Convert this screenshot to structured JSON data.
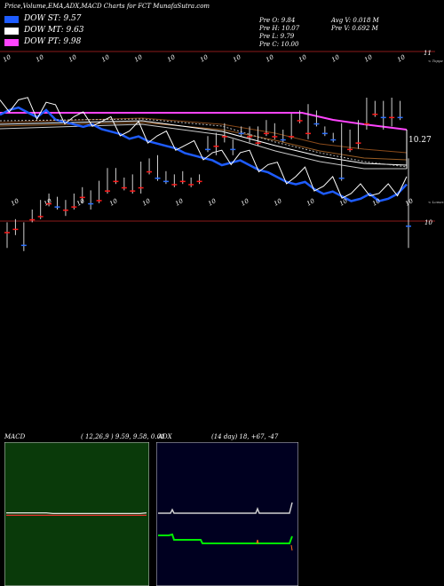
{
  "header": {
    "title": "Price,Volume,EMA,ADX,MACD Charts for FCT MunafaSutra.com",
    "dow": [
      {
        "label": "DOW ST: 9.57",
        "color": "#1e5cff"
      },
      {
        "label": "DOW MT: 9.63",
        "color": "#ffffff"
      },
      {
        "label": "DOW PT: 9.98",
        "color": "#ff44ff"
      }
    ],
    "stats_left": [
      "Pre  O: 9.84",
      "Pre  H: 10.07",
      "Pre  L: 9.79",
      "Pre  C: 10.00"
    ],
    "stats_right": [
      "Avg V: 0.018  M",
      "Pre  V: 0.692  M"
    ]
  },
  "price_panel": {
    "top_labels": [
      "10",
      "10",
      "10",
      "10",
      "10",
      "10",
      "10",
      "10",
      "10",
      "10",
      "10",
      "10",
      "10"
    ],
    "right_label": "11",
    "tiny_right": "< Toppe",
    "value_label": "10.27",
    "bottom_labels": [
      "10",
      "10",
      "10",
      "10",
      "10",
      "10",
      "10",
      "10",
      "10",
      "10",
      "10",
      "10",
      "10"
    ]
  },
  "candle_panel": {
    "tiny_right": "< Lowes",
    "right_label": "10"
  },
  "macd": {
    "label": "MACD",
    "params": "( 12,26,9 ) 9.59,  9.58,  0.01"
  },
  "adx": {
    "label": "ADX",
    "params": "(14  day) 18,  +67,  -47"
  },
  "chart_data": [
    {
      "type": "line",
      "title": "",
      "series": [
        {
          "name": "",
          "values": [
            9.86,
            9.88,
            9.89,
            9.87,
            9.85,
            9.88,
            9.84,
            9.83,
            9.82,
            9.81,
            9.82,
            9.8,
            9.79,
            9.78,
            9.76,
            9.77,
            9.75,
            9.74,
            9.73,
            9.72,
            9.7,
            9.69,
            9.68,
            9.67,
            9.65,
            9.66,
            9.67,
            9.65,
            9.63,
            9.62,
            9.6,
            9.58,
            9.57,
            9.58,
            9.55,
            9.53,
            9.54,
            9.52,
            9.5,
            9.51,
            9.53,
            9.5,
            9.51,
            9.53,
            9.57
          ]
        }
      ],
      "line_colors": [
        "#1e5cff",
        "#ff44ff",
        "#ffffff",
        "#c8c8c8",
        "#ff9a3c",
        "#b0b0b0"
      ]
    },
    {
      "type": "bar",
      "title": "",
      "candles": [
        {
          "o": 10.02,
          "c": 10.01,
          "h": 10.07,
          "l": 9.99
        },
        {
          "o": 10.01,
          "c": 10.0,
          "h": 10.03,
          "l": 9.98
        },
        {
          "o": 10.0,
          "c": 10.06,
          "h": 10.08,
          "l": 9.99
        },
        {
          "o": 9.98,
          "c": 9.96,
          "h": 9.99,
          "l": 9.95
        },
        {
          "o": 9.97,
          "c": 9.94,
          "h": 9.98,
          "l": 9.92
        },
        {
          "o": 9.93,
          "c": 9.91,
          "h": 9.94,
          "l": 9.9
        },
        {
          "o": 9.92,
          "c": 9.94,
          "h": 9.95,
          "l": 9.91
        },
        {
          "o": 9.95,
          "c": 9.93,
          "h": 9.97,
          "l": 9.92
        },
        {
          "o": 9.94,
          "c": 9.92,
          "h": 9.95,
          "l": 9.9
        },
        {
          "o": 9.91,
          "c": 9.89,
          "h": 9.93,
          "l": 9.88
        },
        {
          "o": 9.9,
          "c": 9.93,
          "h": 9.95,
          "l": 9.89
        },
        {
          "o": 9.92,
          "c": 9.88,
          "h": 9.93,
          "l": 9.86
        },
        {
          "o": 9.89,
          "c": 9.83,
          "h": 9.9,
          "l": 9.82
        },
        {
          "o": 9.86,
          "c": 9.84,
          "h": 9.87,
          "l": 9.82
        },
        {
          "o": 9.88,
          "c": 9.86,
          "h": 9.89,
          "l": 9.85
        },
        {
          "o": 9.89,
          "c": 9.86,
          "h": 9.9,
          "l": 9.84
        },
        {
          "o": 9.88,
          "c": 9.82,
          "h": 9.9,
          "l": 9.8
        },
        {
          "o": 9.83,
          "c": 9.81,
          "h": 9.84,
          "l": 9.79
        },
        {
          "o": 9.79,
          "c": 9.85,
          "h": 9.86,
          "l": 9.78
        },
        {
          "o": 9.84,
          "c": 9.86,
          "h": 9.87,
          "l": 9.83
        },
        {
          "o": 9.87,
          "c": 9.85,
          "h": 9.88,
          "l": 9.84
        },
        {
          "o": 9.86,
          "c": 9.84,
          "h": 9.87,
          "l": 9.83
        },
        {
          "o": 9.87,
          "c": 9.86,
          "h": 9.88,
          "l": 9.85
        },
        {
          "o": 9.86,
          "c": 9.85,
          "h": 9.87,
          "l": 9.84
        },
        {
          "o": 9.74,
          "c": 9.76,
          "h": 9.77,
          "l": 9.72
        },
        {
          "o": 9.75,
          "c": 9.73,
          "h": 9.78,
          "l": 9.71
        },
        {
          "o": 9.72,
          "c": 9.7,
          "h": 9.74,
          "l": 9.68
        },
        {
          "o": 9.74,
          "c": 9.76,
          "h": 9.78,
          "l": 9.73
        },
        {
          "o": 9.7,
          "c": 9.71,
          "h": 9.72,
          "l": 9.69
        },
        {
          "o": 9.72,
          "c": 9.7,
          "h": 9.74,
          "l": 9.69
        },
        {
          "o": 9.74,
          "c": 9.71,
          "h": 9.75,
          "l": 9.69
        },
        {
          "o": 9.71,
          "c": 9.69,
          "h": 9.72,
          "l": 9.67
        },
        {
          "o": 9.72,
          "c": 9.7,
          "h": 9.73,
          "l": 9.68
        },
        {
          "o": 9.71,
          "c": 9.73,
          "h": 9.74,
          "l": 9.7
        },
        {
          "o": 9.72,
          "c": 9.66,
          "h": 9.73,
          "l": 9.65
        },
        {
          "o": 9.67,
          "c": 9.65,
          "h": 9.68,
          "l": 9.64
        },
        {
          "o": 9.71,
          "c": 9.64,
          "h": 9.73,
          "l": 9.62
        },
        {
          "o": 9.65,
          "c": 9.68,
          "h": 9.69,
          "l": 9.64
        },
        {
          "o": 9.7,
          "c": 9.71,
          "h": 9.72,
          "l": 9.69
        },
        {
          "o": 9.72,
          "c": 9.73,
          "h": 9.74,
          "l": 9.71
        },
        {
          "o": 9.78,
          "c": 9.85,
          "h": 9.86,
          "l": 9.68
        },
        {
          "o": 9.76,
          "c": 9.71,
          "h": 9.77,
          "l": 9.7
        },
        {
          "o": 9.74,
          "c": 9.68,
          "h": 9.76,
          "l": 9.67
        },
        {
          "o": 9.68,
          "c": 9.63,
          "h": 9.7,
          "l": 9.6
        },
        {
          "o": 9.65,
          "c": 9.63,
          "h": 9.66,
          "l": 9.61
        },
        {
          "o": 9.62,
          "c": 9.66,
          "h": 9.7,
          "l": 9.61
        },
        {
          "o": 9.66,
          "c": 9.62,
          "h": 9.69,
          "l": 9.6
        },
        {
          "o": 9.62,
          "c": 9.66,
          "h": 9.67,
          "l": 9.61
        },
        {
          "o": 9.84,
          "c": 10.0,
          "h": 10.07,
          "l": 9.79
        }
      ]
    },
    {
      "type": "line",
      "title": "MACD ( 12,26,9 ) 9.59, 9.58, 0.01",
      "series": [
        {
          "name": "MACD",
          "values": [
            9.59,
            9.59,
            9.59,
            9.59,
            9.59,
            9.59,
            9.59,
            9.58,
            9.58,
            9.58,
            9.58,
            9.58,
            9.58,
            9.58,
            9.58,
            9.58,
            9.58,
            9.58,
            9.58,
            9.58,
            9.58,
            9.59
          ]
        },
        {
          "name": "Signal",
          "values": [
            9.58,
            9.58,
            9.58,
            9.58,
            9.58,
            9.58,
            9.58,
            9.58,
            9.58,
            9.58,
            9.58,
            9.58,
            9.58,
            9.58,
            9.58,
            9.58,
            9.58,
            9.58,
            9.58,
            9.58,
            9.58,
            9.58
          ]
        }
      ]
    },
    {
      "type": "line",
      "title": "ADX (14 day) 18, +67, -47",
      "series": [
        {
          "name": "ADX",
          "values": [
            18,
            18,
            18,
            18,
            18,
            18,
            18,
            18,
            18,
            18,
            18,
            18,
            18,
            18,
            18,
            18,
            18,
            18,
            18,
            18,
            18,
            18
          ]
        },
        {
          "name": "+DI",
          "values": [
            60,
            60,
            60,
            58,
            58,
            55,
            55,
            55,
            55,
            55,
            55,
            55,
            55,
            55,
            55,
            55,
            55,
            55,
            55,
            55,
            55,
            67
          ]
        },
        {
          "name": "-DI",
          "values": [
            50,
            50,
            50,
            52,
            52,
            47,
            47,
            47,
            47,
            47,
            47,
            47,
            47,
            47,
            47,
            47,
            47,
            47,
            47,
            47,
            47,
            47
          ]
        }
      ]
    }
  ]
}
